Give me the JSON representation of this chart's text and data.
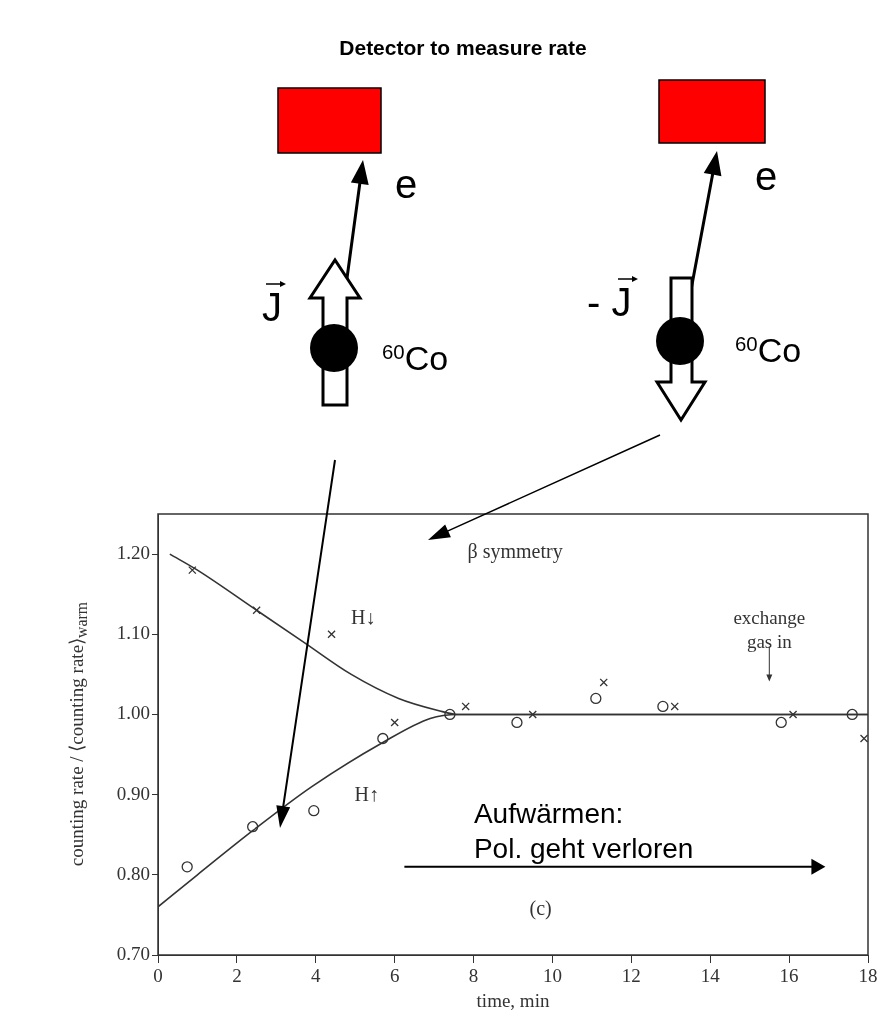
{
  "chart_data": {
    "type": "scatter",
    "title": "Detector to measure rate",
    "xlabel": "time, min",
    "ylabel": "counting rate / ⟨counting rate⟩$_{warm}$",
    "xlim": [
      0,
      18
    ],
    "xticks": [
      0,
      2,
      4,
      6,
      8,
      10,
      12,
      14,
      16,
      18
    ],
    "ylim": [
      0.7,
      1.25
    ],
    "yticks": [
      {
        "value": 0.7,
        "label": "0.70"
      },
      {
        "value": 0.8,
        "label": "0.80"
      },
      {
        "value": 0.9,
        "label": "0.90"
      },
      {
        "value": 1.0,
        "label": "1.00"
      },
      {
        "value": 1.1,
        "label": "1.10"
      },
      {
        "value": 1.2,
        "label": "1.20"
      }
    ],
    "grid": false,
    "legend": false,
    "series": [
      {
        "type": "scatter",
        "marker": "cross",
        "color": "#333333",
        "x": [
          0.87,
          2.5,
          4.4,
          6.0,
          7.8,
          9.5,
          11.3,
          13.1,
          16.1,
          17.9
        ],
        "values": [
          1.18,
          1.13,
          1.1,
          0.99,
          1.01,
          1.0,
          1.04,
          1.01,
          1.0,
          0.97
        ]
      },
      {
        "type": "scatter",
        "marker": "circle",
        "color": "#333333",
        "x": [
          0.74,
          2.4,
          3.95,
          5.7,
          7.4,
          9.1,
          11.1,
          12.8,
          15.8,
          17.6
        ],
        "values": [
          0.81,
          0.86,
          0.88,
          0.97,
          1.0,
          0.99,
          1.02,
          1.01,
          0.99,
          1.0
        ]
      },
      {
        "type": "line",
        "marker": "none",
        "color": "#333333",
        "x": [
          0.3,
          1,
          2.5,
          3.7,
          4.9,
          6.1,
          7.1,
          7.6,
          18
        ],
        "values": [
          1.2,
          1.18,
          1.13,
          1.09,
          1.05,
          1.02,
          1.005,
          1.0,
          1.0
        ]
      },
      {
        "type": "line",
        "marker": "none",
        "color": "#333333",
        "x": [
          0,
          1,
          2.4,
          3.9,
          5.7,
          6.9,
          7.6,
          18
        ],
        "values": [
          0.76,
          0.8,
          0.855,
          0.91,
          0.965,
          0.995,
          1.0,
          1.0
        ]
      }
    ],
    "annotations": [
      "e",
      "J",
      "$^{60}$Co",
      "e",
      "- J",
      "$^{60}$Co",
      "β symmetry",
      "H↓",
      "H↑",
      "exchange\ngas in",
      "Aufwärmen:\nPol. geht verloren",
      "(c)"
    ]
  }
}
